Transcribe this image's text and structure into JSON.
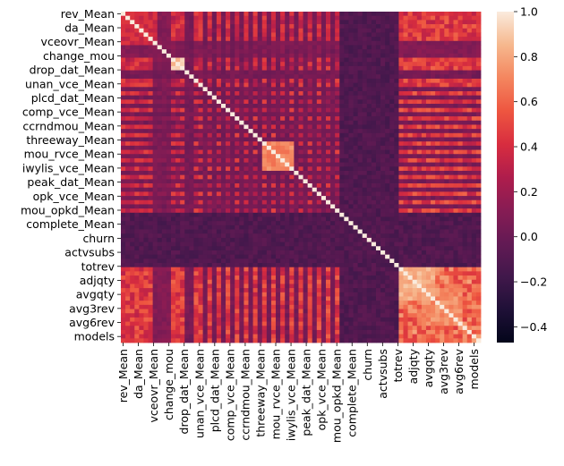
{
  "chart_data": {
    "type": "heatmap",
    "matrix_size": 79,
    "colormap": "rocket",
    "colorbar": {
      "min": -0.47,
      "max": 1.0,
      "ticks": [
        1.0,
        0.8,
        0.6,
        0.4,
        0.2,
        0.0,
        -0.2,
        -0.4
      ],
      "tick_labels": [
        "1.0",
        "0.8",
        "0.6",
        "0.4",
        "0.2",
        "0.0",
        "−0.2",
        "−0.4"
      ]
    },
    "y_tick_labels": [
      "rev_Mean",
      "da_Mean",
      "vceovr_Mean",
      "change_mou",
      "drop_dat_Mean",
      "unan_vce_Mean",
      "plcd_dat_Mean",
      "comp_vce_Mean",
      "ccrndmou_Mean",
      "threeway_Mean",
      "mou_rvce_Mean",
      "iwylis_vce_Mean",
      "peak_dat_Mean",
      "opk_vce_Mean",
      "mou_opkd_Mean",
      "complete_Mean",
      "churn",
      "actvsubs",
      "totrev",
      "adjqty",
      "avgqty",
      "avg3rev",
      "avg6rev",
      "models"
    ],
    "x_tick_labels": [
      "rev_Mean",
      "da_Mean",
      "vceovr_Mean",
      "change_mou",
      "drop_dat_Mean",
      "unan_vce_Mean",
      "plcd_dat_Mean",
      "comp_vce_Mean",
      "ccrndmou_Mean",
      "threeway_Mean",
      "mou_rvce_Mean",
      "iwylis_vce_Mean",
      "peak_dat_Mean",
      "opk_vce_Mean",
      "mou_opkd_Mean",
      "complete_Mean",
      "churn",
      "actvsubs",
      "totrev",
      "adjqty",
      "avgqty",
      "avg3rev",
      "avg6rev",
      "models"
    ],
    "tick_every": 3.35,
    "diagonal_value": 1.0,
    "row_type": [
      0,
      0,
      0,
      0,
      0,
      0,
      0,
      1,
      1,
      1,
      1,
      2,
      2,
      2,
      3,
      3,
      2,
      2,
      3,
      2,
      3,
      2,
      3,
      2,
      3,
      2,
      3,
      2,
      3,
      2,
      3,
      2,
      3,
      2,
      3,
      2,
      3,
      2,
      3,
      2,
      3,
      2,
      3,
      2,
      3,
      2,
      3,
      2,
      4,
      4,
      4,
      4,
      4,
      4,
      4,
      4,
      4,
      4,
      4,
      4,
      4,
      5,
      5,
      5,
      5,
      5,
      5,
      5,
      5,
      5,
      5,
      5,
      5,
      5,
      5,
      5,
      5,
      5,
      5
    ],
    "special_blocks": [
      {
        "rows": [
          0,
          7
        ],
        "cols": [
          0,
          7
        ],
        "value": 0.45
      },
      {
        "rows": [
          3,
          5
        ],
        "cols": [
          3,
          5
        ],
        "value": 0.92
      },
      {
        "rows": [
          11,
          13
        ],
        "cols": [
          11,
          13
        ],
        "value": 0.95
      },
      {
        "rows": [
          31,
          37
        ],
        "cols": [
          31,
          37
        ],
        "value": 0.78
      },
      {
        "rows": [
          61,
          68
        ],
        "cols": [
          61,
          68
        ],
        "value": 0.9
      },
      {
        "rows": [
          66,
          74
        ],
        "cols": [
          66,
          74
        ],
        "value": 0.8
      }
    ]
  }
}
